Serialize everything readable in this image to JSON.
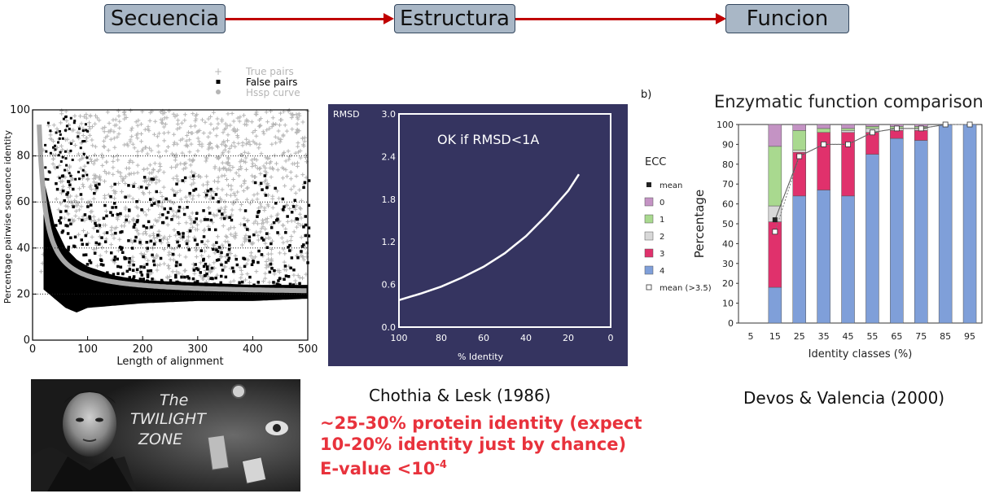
{
  "flow": {
    "boxes": [
      "Secuencia",
      "Estructura",
      "Funcion"
    ],
    "arrow_color": "#c00000"
  },
  "chart_data": [
    {
      "type": "scatter",
      "title": "",
      "xlabel": "Length of alignment",
      "ylabel": "Percentage pairwise sequence identity",
      "xlim": [
        0,
        500
      ],
      "ylim": [
        0,
        100
      ],
      "xticks": [
        "0",
        "100",
        "200",
        "300",
        "400",
        "500"
      ],
      "yticks": [
        "0",
        "20",
        "40",
        "60",
        "80",
        "100"
      ],
      "legend": [
        "True pairs",
        "False pairs",
        "Hssp curve"
      ],
      "legend_position": "top-right",
      "reference_lines": [
        20,
        40,
        60,
        80
      ],
      "series": [
        {
          "name": "Hssp curve",
          "color": "#a8a8a8",
          "x": [
            12,
            20,
            30,
            40,
            50,
            60,
            80,
            100,
            120,
            150,
            200,
            250,
            300,
            400,
            500
          ],
          "y": [
            100,
            77,
            60,
            50,
            43,
            38,
            32,
            28,
            26,
            24,
            22.5,
            21.5,
            21,
            20.5,
            20
          ]
        },
        {
          "name": "False pairs (upper envelope)",
          "color": "#000000",
          "x": [
            20,
            40,
            60,
            80,
            100,
            150,
            200,
            300,
            400,
            500
          ],
          "y": [
            70,
            50,
            40,
            35,
            32,
            28,
            26,
            25,
            24,
            24
          ]
        },
        {
          "name": "False pairs (lower envelope)",
          "color": "#000000",
          "x": [
            20,
            40,
            60,
            80,
            100,
            150,
            200,
            300,
            400,
            500
          ],
          "y": [
            22,
            18,
            14,
            12,
            14,
            15,
            16,
            17,
            17,
            18
          ]
        }
      ]
    },
    {
      "type": "line",
      "title": "OK if RMSD<1A",
      "xlabel": "% Identity",
      "ylabel": "RMSD",
      "xlim": [
        100,
        0
      ],
      "ylim": [
        0,
        3.0
      ],
      "xticks": [
        "100",
        "80",
        "60",
        "40",
        "20",
        "0"
      ],
      "yticks": [
        "0.0",
        "0.6",
        "1.2",
        "1.8",
        "2.4",
        "3.0"
      ],
      "background": "#353460",
      "series": [
        {
          "name": "",
          "color": "#ffffff",
          "x": [
            100,
            90,
            80,
            70,
            60,
            50,
            40,
            30,
            20,
            15
          ],
          "y": [
            0.38,
            0.47,
            0.57,
            0.7,
            0.85,
            1.04,
            1.28,
            1.58,
            1.92,
            2.15
          ]
        }
      ]
    },
    {
      "type": "bar",
      "stacked": true,
      "title": "Enzymatic function comparison",
      "panel_label": "b)",
      "xlabel": "Identity classes (%)",
      "ylabel": "Percentage",
      "ylim": [
        0,
        100
      ],
      "yticks": [
        "0",
        "10",
        "20",
        "30",
        "40",
        "50",
        "60",
        "70",
        "80",
        "90",
        "100"
      ],
      "categories": [
        "5",
        "15",
        "25",
        "35",
        "45",
        "55",
        "65",
        "75",
        "85",
        "95"
      ],
      "legend_title": "ECC",
      "legend": [
        "mean",
        "0",
        "1",
        "2",
        "3",
        "4",
        "mean (>3.5)"
      ],
      "legend_position": "left",
      "series": [
        {
          "name": "4",
          "color": "#7f9fd9",
          "values": [
            0,
            18,
            64,
            67,
            64,
            85,
            93,
            92,
            100,
            100
          ]
        },
        {
          "name": "3",
          "color": "#e0316c",
          "values": [
            0,
            33,
            22,
            29,
            32,
            11,
            4,
            5,
            0,
            0
          ]
        },
        {
          "name": "2",
          "color": "#d8d8d8",
          "values": [
            0,
            8,
            1,
            0,
            1,
            2,
            1,
            1,
            0,
            0
          ]
        },
        {
          "name": "1",
          "color": "#a9d98f",
          "values": [
            0,
            30,
            10,
            2,
            1,
            1,
            1,
            1,
            0,
            0
          ]
        },
        {
          "name": "0",
          "color": "#c493c4",
          "values": [
            0,
            11,
            3,
            2,
            2,
            1,
            1,
            1,
            0,
            0
          ]
        }
      ],
      "mean": [
        null,
        52,
        84,
        90,
        90,
        96,
        98,
        98,
        100,
        100
      ],
      "mean_high": [
        null,
        46,
        84,
        90,
        90,
        96,
        98,
        98,
        100,
        100
      ]
    }
  ],
  "captions": {
    "chothia": "Chothia & Lesk (1986)",
    "devos": "Devos & Valencia (2000)"
  },
  "note": {
    "line1": "~25-30% protein identity (expect",
    "line2": "10-20% identity just by chance)",
    "line3_prefix": "E-value <10",
    "line3_sup": "-4"
  },
  "twilight": {
    "line1": "The",
    "line2": "TWILIGHT",
    "line3": "ZONE"
  }
}
